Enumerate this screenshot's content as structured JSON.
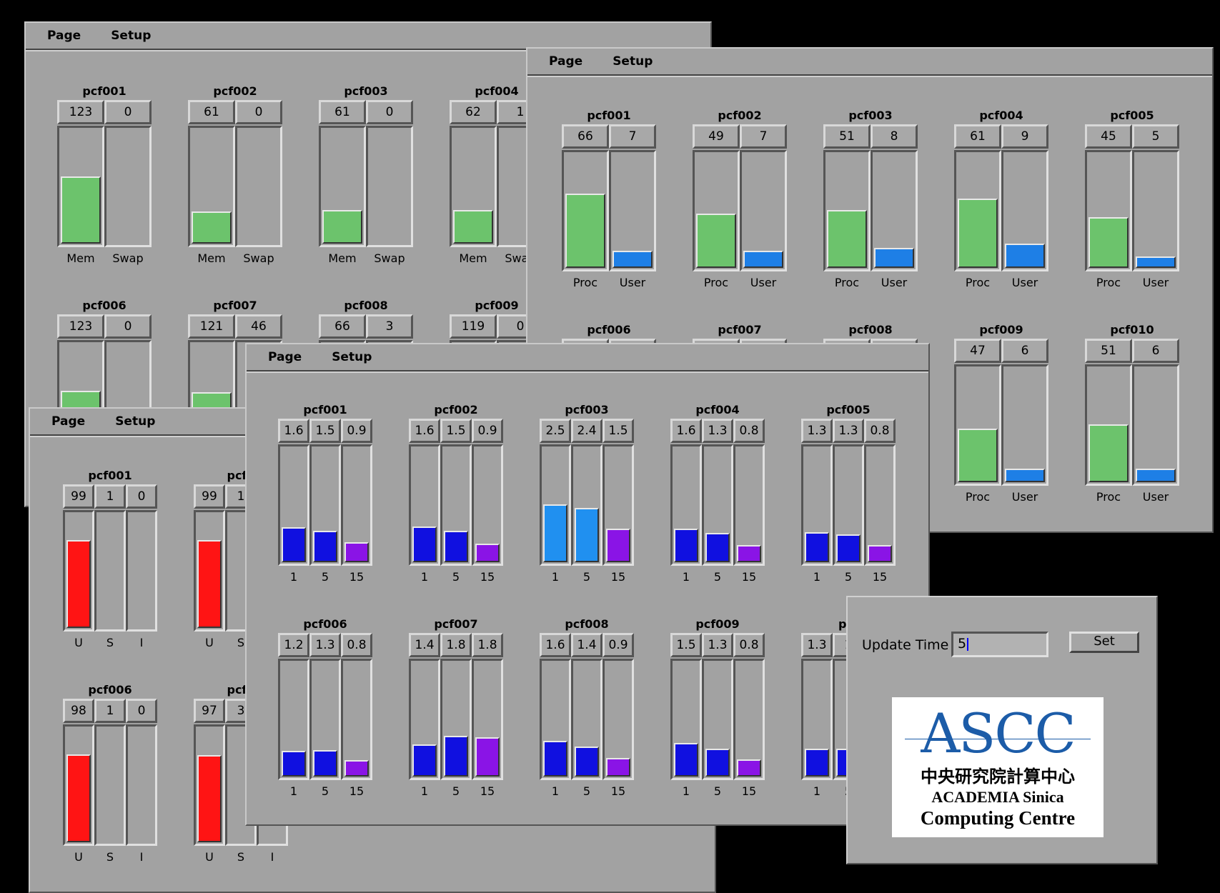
{
  "menu": {
    "page": "Page",
    "setup": "Setup"
  },
  "colors": {
    "mem": "#6cc36c",
    "swap": "#6cc36c",
    "proc": "#6cc36c",
    "user": "#1e7fe6",
    "load": "#1010e0",
    "load_hi": "#2090f0",
    "load15": "#8a14e6",
    "cpu_u": "#ff1414"
  },
  "win_mem": {
    "labels": [
      "Mem",
      "Swap"
    ],
    "nodes": [
      {
        "name": "pcf001",
        "values": [
          "123",
          "0"
        ],
        "fill": [
          0.58,
          0
        ]
      },
      {
        "name": "pcf002",
        "values": [
          "61",
          "0"
        ],
        "fill": [
          0.28,
          0
        ]
      },
      {
        "name": "pcf003",
        "values": [
          "61",
          "0"
        ],
        "fill": [
          0.29,
          0
        ]
      },
      {
        "name": "pcf004",
        "values": [
          "62",
          "1"
        ],
        "fill": [
          0.29,
          0
        ]
      },
      {
        "name": "pcf006",
        "values": [
          "123",
          "0"
        ],
        "fill": [
          0.58,
          0
        ]
      },
      {
        "name": "pcf007",
        "values": [
          "121",
          "46"
        ],
        "fill": [
          0.57,
          0.2
        ]
      },
      {
        "name": "pcf008",
        "values": [
          "66",
          "3"
        ],
        "fill": [
          0.3,
          0.02
        ]
      },
      {
        "name": "pcf009",
        "values": [
          "119",
          "0"
        ],
        "fill": [
          0.56,
          0
        ]
      }
    ]
  },
  "win_proc": {
    "labels": [
      "Proc",
      "User"
    ],
    "nodes": [
      {
        "name": "pcf001",
        "values": [
          "66",
          "7"
        ],
        "fill": [
          0.64,
          0.15
        ]
      },
      {
        "name": "pcf002",
        "values": [
          "49",
          "7"
        ],
        "fill": [
          0.47,
          0.15
        ]
      },
      {
        "name": "pcf003",
        "values": [
          "51",
          "8"
        ],
        "fill": [
          0.5,
          0.17
        ]
      },
      {
        "name": "pcf004",
        "values": [
          "61",
          "9"
        ],
        "fill": [
          0.6,
          0.21
        ]
      },
      {
        "name": "pcf005",
        "values": [
          "45",
          "5"
        ],
        "fill": [
          0.44,
          0.1
        ]
      },
      {
        "name": "pcf006",
        "values": [
          "",
          ""
        ],
        "fill": [
          0,
          0
        ]
      },
      {
        "name": "pcf007",
        "values": [
          "",
          ""
        ],
        "fill": [
          0,
          0
        ]
      },
      {
        "name": "pcf008",
        "values": [
          "",
          ""
        ],
        "fill": [
          0,
          0
        ]
      },
      {
        "name": "pcf009",
        "values": [
          "47",
          "6"
        ],
        "fill": [
          0.46,
          0.12
        ]
      },
      {
        "name": "pcf010",
        "values": [
          "51",
          "6"
        ],
        "fill": [
          0.5,
          0.12
        ]
      }
    ]
  },
  "win_cpu": {
    "labels": [
      "U",
      "S",
      "I"
    ],
    "nodes": [
      {
        "name": "pcf001",
        "values": [
          "99",
          "1",
          "0"
        ],
        "fill": [
          0.76,
          0,
          0
        ]
      },
      {
        "name": "pcf0",
        "values": [
          "99",
          "1",
          ""
        ],
        "fill": [
          0.76,
          0,
          0
        ]
      },
      {
        "name": "pcf006",
        "values": [
          "98",
          "1",
          "0"
        ],
        "fill": [
          0.76,
          0,
          0
        ]
      },
      {
        "name": "pcf0",
        "values": [
          "97",
          "3",
          ""
        ],
        "fill": [
          0.75,
          0,
          0
        ]
      }
    ],
    "bottom_fills": [
      [
        0.5,
        0.02
      ],
      [
        0.5,
        0.02
      ],
      [
        0.5,
        0.04
      ],
      [
        0.5,
        0
      ],
      [
        0.5,
        0
      ]
    ]
  },
  "win_load": {
    "labels": [
      "1",
      "5",
      "15"
    ],
    "nodes": [
      {
        "name": "pcf001",
        "values": [
          "1.6",
          "1.5",
          "0.9"
        ],
        "fill": [
          0.3,
          0.27,
          0.17
        ],
        "hi": false
      },
      {
        "name": "pcf002",
        "values": [
          "1.6",
          "1.5",
          "0.9"
        ],
        "fill": [
          0.31,
          0.27,
          0.16
        ],
        "hi": false
      },
      {
        "name": "pcf003",
        "values": [
          "2.5",
          "2.4",
          "1.5"
        ],
        "fill": [
          0.5,
          0.47,
          0.29
        ],
        "hi": true
      },
      {
        "name": "pcf004",
        "values": [
          "1.6",
          "1.3",
          "0.8"
        ],
        "fill": [
          0.29,
          0.25,
          0.15
        ],
        "hi": false
      },
      {
        "name": "pcf005",
        "values": [
          "1.3",
          "1.3",
          "0.8"
        ],
        "fill": [
          0.26,
          0.24,
          0.15
        ],
        "hi": false
      },
      {
        "name": "pcf006",
        "values": [
          "1.2",
          "1.3",
          "0.8"
        ],
        "fill": [
          0.22,
          0.23,
          0.14
        ],
        "hi": false
      },
      {
        "name": "pcf007",
        "values": [
          "1.4",
          "1.8",
          "1.8"
        ],
        "fill": [
          0.28,
          0.35,
          0.34
        ],
        "hi": false
      },
      {
        "name": "pcf008",
        "values": [
          "1.6",
          "1.4",
          "0.9"
        ],
        "fill": [
          0.31,
          0.26,
          0.16
        ],
        "hi": false
      },
      {
        "name": "pcf009",
        "values": [
          "1.5",
          "1.3",
          "0.8"
        ],
        "fill": [
          0.29,
          0.24,
          0.15
        ],
        "hi": false
      },
      {
        "name": "pcf",
        "values": [
          "1.3",
          "1",
          ""
        ],
        "fill": [
          0.24,
          0.24,
          0
        ],
        "hi": false
      }
    ]
  },
  "update": {
    "label": "Update Time",
    "value": "5",
    "button": "Set"
  },
  "logo": {
    "mark": "ASCC",
    "chinese": "中央研究院計算中心",
    "line1": "ACADEMIA Sinica",
    "line2": "Computing Centre"
  }
}
